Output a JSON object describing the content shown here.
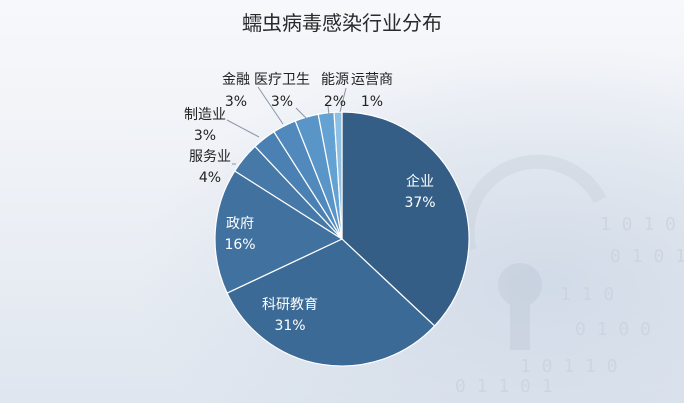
{
  "chart_data": {
    "type": "pie",
    "title": "蠕虫病毒感染行业分布",
    "slices": [
      {
        "label": "企业",
        "value": 37,
        "display": "37%",
        "color": "#355e86"
      },
      {
        "label": "科研教育",
        "value": 31,
        "display": "31%",
        "color": "#3c6a96"
      },
      {
        "label": "政府",
        "value": 16,
        "display": "16%",
        "color": "#40719f"
      },
      {
        "label": "服务业",
        "value": 4,
        "display": "4%",
        "color": "#4678a8"
      },
      {
        "label": "制造业",
        "value": 3,
        "display": "3%",
        "color": "#4b80b2"
      },
      {
        "label": "金融",
        "value": 3,
        "display": "3%",
        "color": "#5189bc"
      },
      {
        "label": "医疗卫生",
        "value": 3,
        "display": "3%",
        "color": "#5a95c8"
      },
      {
        "label": "能源",
        "value": 2,
        "display": "2%",
        "color": "#65a2d4"
      },
      {
        "label": "运营商",
        "value": 1,
        "display": "1%",
        "color": "#8fbfe3"
      }
    ]
  }
}
